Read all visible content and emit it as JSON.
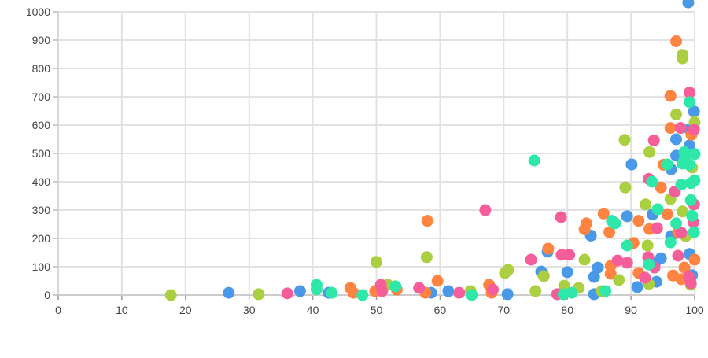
{
  "chart_data": {
    "type": "scatter",
    "title": "",
    "xlabel": "",
    "ylabel": "",
    "xlim": [
      0,
      100
    ],
    "ylim": [
      0,
      1000
    ],
    "x_ticks": [
      0,
      10,
      20,
      30,
      40,
      50,
      60,
      70,
      80,
      90,
      100
    ],
    "y_ticks": [
      0,
      100,
      200,
      300,
      400,
      500,
      600,
      700,
      800,
      900,
      1000
    ],
    "grid": true,
    "legend": "none",
    "series": [
      {
        "color": "#4a98e8",
        "points": [
          [
            99,
            1033
          ],
          [
            26.8,
            8
          ],
          [
            38,
            14
          ],
          [
            42.5,
            8
          ],
          [
            58.6,
            8
          ],
          [
            61.3,
            14
          ],
          [
            70.6,
            3
          ],
          [
            75.9,
            83
          ],
          [
            76.9,
            153
          ],
          [
            80,
            81
          ],
          [
            83.7,
            210
          ],
          [
            84.2,
            64
          ],
          [
            84.8,
            97
          ],
          [
            84.2,
            3
          ],
          [
            89.4,
            278
          ],
          [
            90.1,
            461
          ],
          [
            91,
            28
          ],
          [
            93.4,
            285
          ],
          [
            94,
            47
          ],
          [
            94.7,
            130
          ],
          [
            97.1,
            550
          ],
          [
            97.1,
            492
          ],
          [
            99.2,
            528
          ],
          [
            99.2,
            585
          ],
          [
            99.9,
            648
          ],
          [
            99.2,
            145
          ],
          [
            99.6,
            70
          ],
          [
            96.3,
            444
          ],
          [
            96.3,
            208
          ],
          [
            93.8,
            115
          ]
        ]
      },
      {
        "color": "#ff8442",
        "points": [
          [
            97.1,
            896
          ],
          [
            96.2,
            703
          ],
          [
            96.2,
            590
          ],
          [
            95.1,
            460
          ],
          [
            94.7,
            380
          ],
          [
            95.7,
            286
          ],
          [
            58,
            262
          ],
          [
            59.6,
            50
          ],
          [
            57.7,
            8
          ],
          [
            45.9,
            25
          ],
          [
            46.4,
            8
          ],
          [
            49.8,
            14
          ],
          [
            53.2,
            19
          ],
          [
            67.7,
            36
          ],
          [
            68.1,
            8
          ],
          [
            77,
            164
          ],
          [
            82.7,
            232
          ],
          [
            83,
            253
          ],
          [
            85.7,
            288
          ],
          [
            86.6,
            222
          ],
          [
            86.8,
            103
          ],
          [
            86.8,
            75
          ],
          [
            90.4,
            184
          ],
          [
            91.2,
            262
          ],
          [
            91.2,
            78
          ],
          [
            92.9,
            233
          ],
          [
            97.4,
            222
          ],
          [
            97.9,
            56
          ],
          [
            98.4,
            97
          ],
          [
            99.5,
            566
          ],
          [
            100,
            125
          ],
          [
            96.6,
            69
          ]
        ]
      },
      {
        "color": "#aacf40",
        "points": [
          [
            17.7,
            0
          ],
          [
            31.5,
            3
          ],
          [
            50,
            117
          ],
          [
            51.8,
            36
          ],
          [
            57.9,
            134
          ],
          [
            64.8,
            14
          ],
          [
            70.2,
            78
          ],
          [
            70.7,
            89
          ],
          [
            75,
            14
          ],
          [
            76.3,
            67
          ],
          [
            79.5,
            33
          ],
          [
            81.8,
            25
          ],
          [
            82.7,
            125
          ],
          [
            85.4,
            14
          ],
          [
            88.1,
            53
          ],
          [
            89,
            548
          ],
          [
            89.1,
            380
          ],
          [
            92.9,
            505
          ],
          [
            92.3,
            320
          ],
          [
            92.6,
            175
          ],
          [
            92.8,
            39
          ],
          [
            96.2,
            339
          ],
          [
            97.1,
            638
          ],
          [
            98.1,
            836
          ],
          [
            98.1,
            848
          ],
          [
            98.1,
            295
          ],
          [
            98.6,
            208
          ],
          [
            99.4,
            36
          ],
          [
            100,
            610
          ],
          [
            99.6,
            450
          ]
        ]
      },
      {
        "color": "#f55d9b",
        "points": [
          [
            36,
            6
          ],
          [
            50.7,
            36
          ],
          [
            50.9,
            14
          ],
          [
            56.7,
            25
          ],
          [
            63,
            8
          ],
          [
            67.1,
            300
          ],
          [
            68.3,
            19
          ],
          [
            74.3,
            125
          ],
          [
            79,
            275
          ],
          [
            79.1,
            142
          ],
          [
            80.3,
            142
          ],
          [
            78.4,
            3
          ],
          [
            87.9,
            122
          ],
          [
            89.4,
            114
          ],
          [
            92.8,
            410
          ],
          [
            93.6,
            546
          ],
          [
            94.1,
            236
          ],
          [
            92.7,
            134
          ],
          [
            92.2,
            61
          ],
          [
            93.7,
            97
          ],
          [
            96.9,
            365
          ],
          [
            97.4,
            139
          ],
          [
            97.8,
            590
          ],
          [
            97.9,
            220
          ],
          [
            99.2,
            715
          ],
          [
            99.1,
            64
          ],
          [
            99.4,
            42
          ],
          [
            99.9,
            320
          ],
          [
            99.8,
            258
          ],
          [
            99.9,
            584
          ]
        ]
      },
      {
        "color": "#2de8a8",
        "points": [
          [
            40.6,
            36
          ],
          [
            40.6,
            20
          ],
          [
            43,
            8
          ],
          [
            47.8,
            0
          ],
          [
            53,
            31
          ],
          [
            65,
            0
          ],
          [
            74.8,
            475
          ],
          [
            79.4,
            3
          ],
          [
            80.7,
            8
          ],
          [
            86,
            14
          ],
          [
            87,
            262
          ],
          [
            87.5,
            253
          ],
          [
            89.4,
            175
          ],
          [
            93.3,
            400
          ],
          [
            94.2,
            303
          ],
          [
            95.7,
            461
          ],
          [
            96.2,
            186
          ],
          [
            97.1,
            253
          ],
          [
            97.9,
            390
          ],
          [
            98.1,
            464
          ],
          [
            98.4,
            505
          ],
          [
            99.2,
            681
          ],
          [
            99.2,
            460
          ],
          [
            99.4,
            395
          ],
          [
            99.4,
            335
          ],
          [
            99.6,
            280
          ],
          [
            99.9,
            222
          ],
          [
            100,
            405
          ],
          [
            100,
            498
          ],
          [
            92.8,
            108
          ],
          [
            98.4,
            480
          ]
        ]
      }
    ]
  }
}
